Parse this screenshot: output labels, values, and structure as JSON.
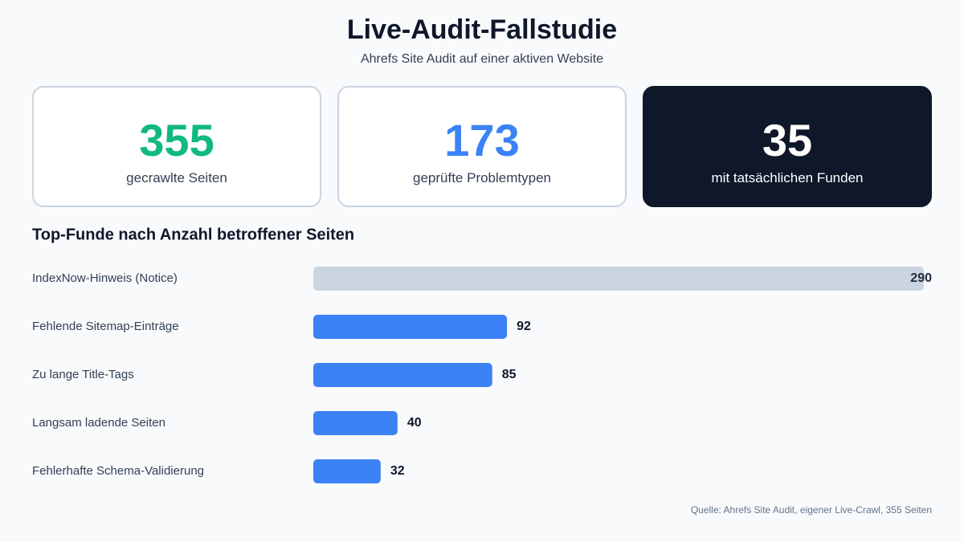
{
  "header": {
    "title": "Live-Audit-Fallstudie",
    "subtitle": "Ahrefs Site Audit auf einer aktiven Website"
  },
  "stats": [
    {
      "value": "355",
      "label": "gecrawlte Seiten",
      "color": "#10b981"
    },
    {
      "value": "173",
      "label": "geprüfte Problemtypen",
      "color": "#3b82f6"
    },
    {
      "value": "35",
      "label": "mit tatsächlichen Funden",
      "color": "#ffffff"
    }
  ],
  "chart_data": {
    "type": "bar",
    "orientation": "horizontal",
    "title": "Top-Funde nach Anzahl betroffener Seiten",
    "categories": [
      "IndexNow-Hinweis (Notice)",
      "Fehlende Sitemap-Einträge",
      "Zu lange Title-Tags",
      "Langsam ladende Seiten",
      "Fehlerhafte Schema-Validierung"
    ],
    "values": [
      290,
      92,
      85,
      40,
      32
    ],
    "colors": [
      "#cbd5e1",
      "#3b82f6",
      "#3b82f6",
      "#3b82f6",
      "#3b82f6"
    ],
    "xlim": [
      0,
      290
    ]
  },
  "footer": {
    "source": "Quelle: Ahrefs Site Audit, eigener Live-Crawl, 355 Seiten"
  }
}
